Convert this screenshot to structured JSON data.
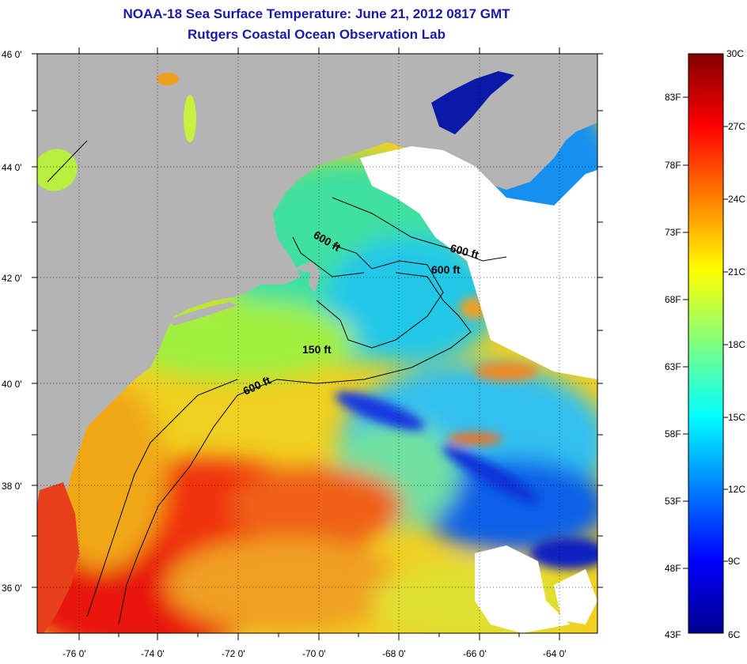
{
  "title": "NOAA-18 Sea Surface Temperature:  June 21, 2012 0817 GMT",
  "subtitle": "Rutgers Coastal Ocean Observation Lab",
  "lat_labels": [
    "46 0'",
    "44 0'",
    "42 0'",
    "40 0'",
    "38 0'",
    "36 0'"
  ],
  "lon_labels": [
    "-76 0'",
    "-74 0'",
    "-72 0'",
    "-70 0'",
    "-68 0'",
    "-66 0'",
    "-64 0'"
  ],
  "contour_labels": [
    "600 ft",
    "600 ft",
    "600 ft",
    "150 ft",
    "600 ft"
  ],
  "colorbar": {
    "celsius": [
      "30C",
      "27C",
      "24C",
      "21C",
      "18C",
      "15C",
      "12C",
      "9C",
      "6C"
    ],
    "fahrenheit": [
      "83F",
      "78F",
      "73F",
      "68F",
      "63F",
      "58F",
      "53F",
      "48F",
      "43F"
    ]
  },
  "colors": {
    "title": "#1a1aa8",
    "land": "#b4b4b4",
    "cloud": "#ffffff",
    "warm": "#e8260c",
    "cold": "#0a1fc8"
  }
}
